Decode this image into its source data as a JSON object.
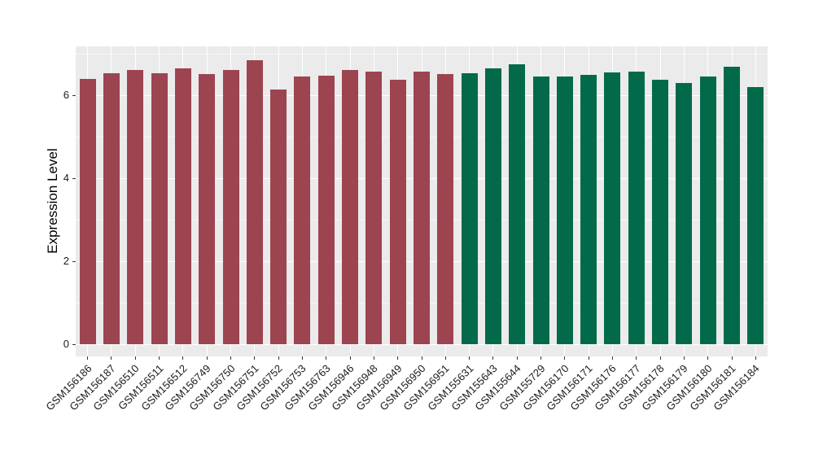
{
  "chart_data": {
    "type": "bar",
    "title": "",
    "xlabel": "",
    "ylabel": "Expression Level",
    "ylim": [
      -0.29,
      7.18
    ],
    "yticks_major": [
      0,
      2,
      4,
      6
    ],
    "yticks_minor": [
      1,
      3,
      5,
      7
    ],
    "grid": "on",
    "legend_position": "none",
    "panel_bg": "#EBEBEB",
    "grid_color": "#FFFFFF",
    "tick_color": "#333333",
    "categories": [
      "GSM156186",
      "GSM156187",
      "GSM156510",
      "GSM156511",
      "GSM156512",
      "GSM156749",
      "GSM156750",
      "GSM156751",
      "GSM156752",
      "GSM156753",
      "GSM156763",
      "GSM156946",
      "GSM156948",
      "GSM156949",
      "GSM156950",
      "GSM156951",
      "GSM155631",
      "GSM155643",
      "GSM155644",
      "GSM155729",
      "GSM156170",
      "GSM156171",
      "GSM156176",
      "GSM156177",
      "GSM156178",
      "GSM156179",
      "GSM156180",
      "GSM156181",
      "GSM156184"
    ],
    "values": [
      6.4,
      6.53,
      6.61,
      6.52,
      6.65,
      6.51,
      6.61,
      6.84,
      6.14,
      6.46,
      6.47,
      6.6,
      6.56,
      6.37,
      6.57,
      6.51,
      6.52,
      6.65,
      6.74,
      6.45,
      6.46,
      6.5,
      6.55,
      6.57,
      6.38,
      6.29,
      6.45,
      6.68,
      6.2
    ],
    "groups": [
      {
        "name": "group-maroon",
        "color": "#9D4451",
        "from": 0,
        "to": 15
      },
      {
        "name": "group-green",
        "color": "#026A4B",
        "from": 16,
        "to": 28
      }
    ]
  }
}
